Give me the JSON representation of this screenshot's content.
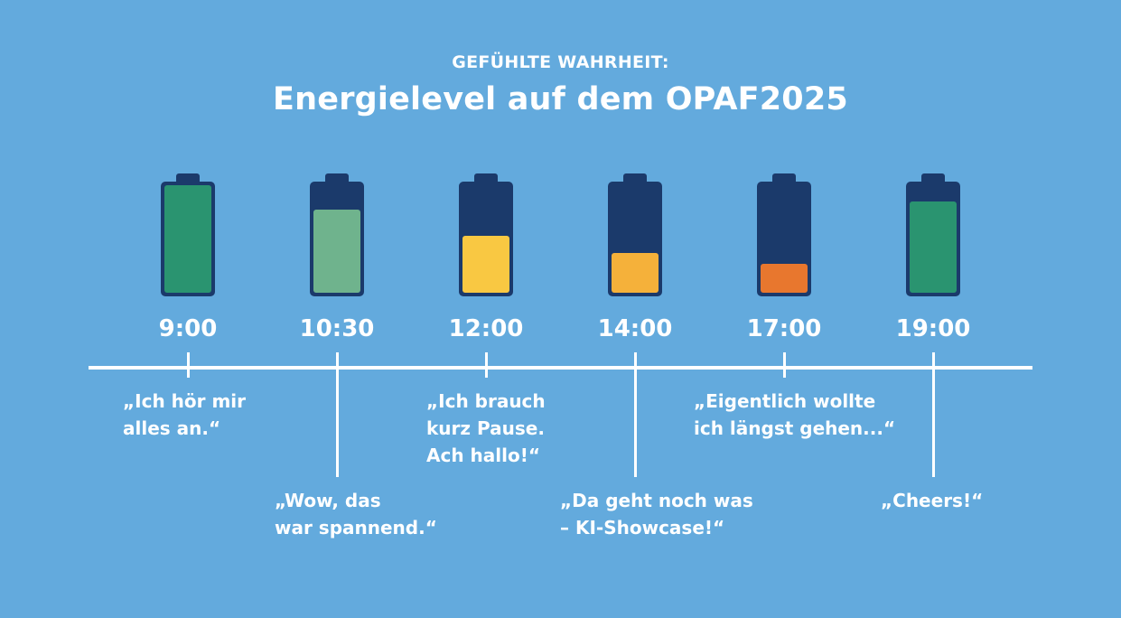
{
  "header": {
    "kicker": "GEFÜHLTE WAHRHEIT:",
    "title": "Energielevel auf dem OPAF2025"
  },
  "timeline": [
    {
      "time": "9:00",
      "level": 1.0,
      "color": "#2a9470",
      "quote": "„Ich hör mir\nalles an.“"
    },
    {
      "time": "10:30",
      "level": 0.77,
      "color": "#6fb38d",
      "quote": "„Wow, das\nwar spannend.“"
    },
    {
      "time": "12:00",
      "level": 0.53,
      "color": "#f9c842",
      "quote": "„Ich brauch\nkurz Pause.\nAch hallo!“"
    },
    {
      "time": "14:00",
      "level": 0.37,
      "color": "#f5b13a",
      "quote": "„Da geht noch was\n– KI-Showcase!“"
    },
    {
      "time": "17:00",
      "level": 0.27,
      "color": "#e8772e",
      "quote": "„Eigentlich wollte\nich längst gehen...“"
    },
    {
      "time": "19:00",
      "level": 0.85,
      "color": "#2a9470",
      "quote": "„Cheers!“"
    }
  ]
}
